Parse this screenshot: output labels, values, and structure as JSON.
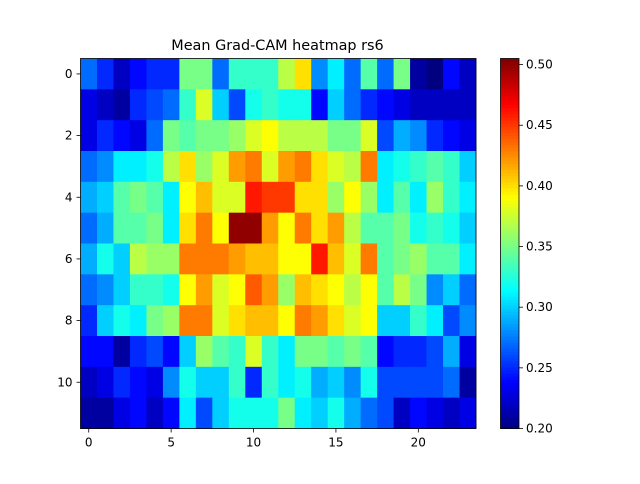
{
  "chart_data": {
    "type": "heatmap",
    "title": "Mean Grad-CAM heatmap rs6",
    "xlabel": "",
    "ylabel": "",
    "colormap": "jet",
    "xlim": [
      -0.5,
      23.5
    ],
    "ylim": [
      11.5,
      -0.5
    ],
    "x_ticks": [
      0,
      5,
      10,
      15,
      20
    ],
    "y_ticks": [
      0,
      2,
      4,
      6,
      8,
      10
    ],
    "colorbar": {
      "min": 0.2,
      "max": 0.505,
      "ticks": [
        "0.20",
        "0.25",
        "0.30",
        "0.35",
        "0.40",
        "0.45",
        "0.50"
      ],
      "tick_values": [
        0.2,
        0.25,
        0.3,
        0.35,
        0.4,
        0.45,
        0.5
      ]
    },
    "values": [
      [
        0.27,
        0.25,
        0.22,
        0.24,
        0.25,
        0.25,
        0.35,
        0.35,
        0.27,
        0.33,
        0.33,
        0.33,
        0.37,
        0.4,
        0.28,
        0.31,
        0.27,
        0.34,
        0.27,
        0.35,
        0.21,
        0.2,
        0.24,
        0.22
      ],
      [
        0.23,
        0.22,
        0.21,
        0.25,
        0.26,
        0.27,
        0.33,
        0.38,
        0.3,
        0.26,
        0.32,
        0.33,
        0.32,
        0.32,
        0.24,
        0.3,
        0.27,
        0.25,
        0.24,
        0.23,
        0.22,
        0.22,
        0.22,
        0.22
      ],
      [
        0.23,
        0.25,
        0.24,
        0.23,
        0.27,
        0.35,
        0.34,
        0.35,
        0.35,
        0.36,
        0.38,
        0.39,
        0.37,
        0.37,
        0.37,
        0.35,
        0.35,
        0.38,
        0.26,
        0.29,
        0.28,
        0.25,
        0.24,
        0.23
      ],
      [
        0.27,
        0.28,
        0.31,
        0.31,
        0.32,
        0.37,
        0.4,
        0.36,
        0.38,
        0.42,
        0.43,
        0.38,
        0.42,
        0.43,
        0.4,
        0.38,
        0.37,
        0.43,
        0.31,
        0.32,
        0.33,
        0.34,
        0.33,
        0.3
      ],
      [
        0.29,
        0.3,
        0.34,
        0.35,
        0.34,
        0.31,
        0.39,
        0.41,
        0.38,
        0.38,
        0.46,
        0.45,
        0.45,
        0.4,
        0.4,
        0.36,
        0.39,
        0.36,
        0.31,
        0.34,
        0.31,
        0.36,
        0.33,
        0.31
      ],
      [
        0.27,
        0.29,
        0.34,
        0.34,
        0.35,
        0.31,
        0.4,
        0.43,
        0.39,
        0.5,
        0.5,
        0.42,
        0.39,
        0.43,
        0.4,
        0.42,
        0.37,
        0.34,
        0.34,
        0.35,
        0.32,
        0.33,
        0.32,
        0.3
      ],
      [
        0.29,
        0.32,
        0.3,
        0.37,
        0.36,
        0.36,
        0.43,
        0.43,
        0.43,
        0.42,
        0.41,
        0.41,
        0.39,
        0.39,
        0.46,
        0.41,
        0.38,
        0.43,
        0.34,
        0.35,
        0.36,
        0.34,
        0.34,
        0.31
      ],
      [
        0.27,
        0.28,
        0.3,
        0.33,
        0.33,
        0.32,
        0.39,
        0.42,
        0.38,
        0.39,
        0.44,
        0.42,
        0.36,
        0.41,
        0.4,
        0.39,
        0.37,
        0.39,
        0.34,
        0.37,
        0.35,
        0.28,
        0.3,
        0.27
      ],
      [
        0.25,
        0.3,
        0.32,
        0.31,
        0.35,
        0.36,
        0.43,
        0.43,
        0.38,
        0.4,
        0.41,
        0.41,
        0.39,
        0.43,
        0.42,
        0.4,
        0.38,
        0.39,
        0.3,
        0.3,
        0.33,
        0.31,
        0.26,
        0.28
      ],
      [
        0.24,
        0.24,
        0.21,
        0.25,
        0.26,
        0.24,
        0.3,
        0.36,
        0.34,
        0.33,
        0.38,
        0.33,
        0.31,
        0.35,
        0.35,
        0.34,
        0.35,
        0.34,
        0.24,
        0.25,
        0.25,
        0.26,
        0.29,
        0.23
      ],
      [
        0.22,
        0.23,
        0.25,
        0.24,
        0.23,
        0.28,
        0.32,
        0.3,
        0.3,
        0.33,
        0.25,
        0.33,
        0.31,
        0.32,
        0.29,
        0.3,
        0.28,
        0.32,
        0.26,
        0.26,
        0.26,
        0.26,
        0.27,
        0.21
      ],
      [
        0.21,
        0.21,
        0.23,
        0.24,
        0.22,
        0.24,
        0.31,
        0.26,
        0.3,
        0.32,
        0.32,
        0.32,
        0.35,
        0.31,
        0.3,
        0.32,
        0.29,
        0.27,
        0.26,
        0.22,
        0.24,
        0.23,
        0.22,
        0.23
      ]
    ]
  }
}
